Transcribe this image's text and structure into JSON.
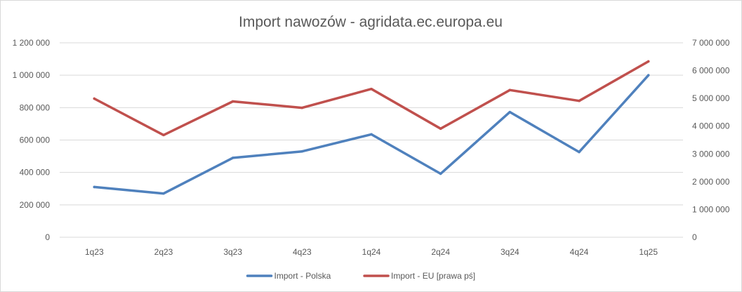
{
  "chart_data": {
    "type": "line",
    "title": "Import nawozów - agridata.ec.europa.eu",
    "categories": [
      "1q23",
      "2q23",
      "3q23",
      "4q23",
      "1q24",
      "2q24",
      "3q24",
      "4q24",
      "1q25"
    ],
    "grid": true,
    "legend_position": "bottom",
    "y_left": {
      "min": 0,
      "max": 1200000,
      "ticks": [
        0,
        200000,
        400000,
        600000,
        800000,
        1000000,
        1200000
      ],
      "tick_labels": [
        "0",
        "200 000",
        "400 000",
        "600 000",
        "800 000",
        "1 000 000",
        "1 200 000"
      ]
    },
    "y_right": {
      "min": 0,
      "max": 7000000,
      "ticks": [
        0,
        1000000,
        2000000,
        3000000,
        4000000,
        5000000,
        6000000,
        7000000
      ],
      "tick_labels": [
        "0",
        "1 000 000",
        "2 000 000",
        "3 000 000",
        "4 000 000",
        "5 000 000",
        "6 000 000",
        "7 000 000"
      ]
    },
    "series": [
      {
        "name": "Import - Polska",
        "axis": "left",
        "color": "#4f81bd",
        "values": [
          310000,
          270000,
          490000,
          530000,
          635000,
          392000,
          773000,
          526000,
          1000000
        ]
      },
      {
        "name": "Import - EU [prawa pś]",
        "axis": "right",
        "color": "#c0504d",
        "values": [
          4990000,
          3680000,
          4890000,
          4660000,
          5340000,
          3910000,
          5300000,
          4910000,
          6330000
        ]
      }
    ]
  }
}
